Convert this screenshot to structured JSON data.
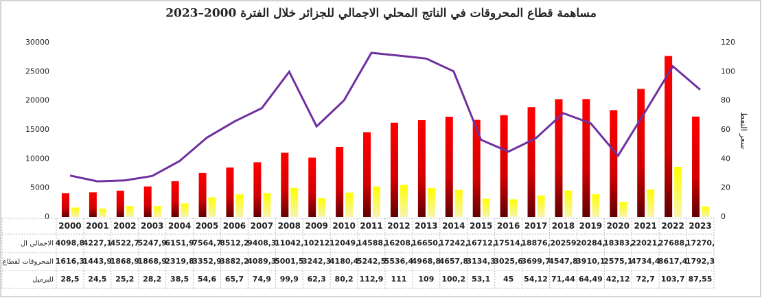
{
  "chart_data": {
    "type": "bar_line",
    "title": "مساهمة قطاع المحروقات في الناتج المحلي الاجمالي للجزائر خلال الفترة 2000–2023",
    "y2_label": "سعر النفط",
    "categories": [
      "2000",
      "2001",
      "2002",
      "2003",
      "2004",
      "2005",
      "2006",
      "2007",
      "2008",
      "2009",
      "2010",
      "2011",
      "2012",
      "2013",
      "2014",
      "2015",
      "2016",
      "2017",
      "2018",
      "2019",
      "2020",
      "2021",
      "2022",
      "2023"
    ],
    "ylim": [
      0,
      30000
    ],
    "yticks": [
      0,
      5000,
      10000,
      15000,
      20000,
      25000,
      30000
    ],
    "y2lim": [
      0,
      120
    ],
    "y2ticks": [
      0,
      20,
      40,
      60,
      80,
      100,
      120
    ],
    "grid": false,
    "series": [
      {
        "name": "الاجمالي ال",
        "color": "#e00000",
        "kind": "bar",
        "values": [
          4098.8,
          4227.1,
          4522.7,
          5247.9,
          6151.9,
          7564.7,
          8512.2,
          9408.3,
          11042,
          10212,
          12049,
          14588,
          16208,
          16650,
          17242,
          16712,
          17514,
          18876,
          20259,
          20284,
          18383,
          22021,
          27688,
          17270
        ],
        "value_labels": [
          "4098,8",
          "4227,1",
          "4522,7",
          "5247,9",
          "6151,9",
          "7564,7",
          "8512,2",
          "9408,3",
          "11042,",
          "10212",
          "12049,",
          "14588,",
          "16208,",
          "16650,",
          "17242,",
          "16712,",
          "17514,",
          "18876,",
          "20259",
          "20284,",
          "18383,",
          "22021,",
          "27688,",
          "17270,"
        ]
      },
      {
        "name": "المحروقات لقطاع ال",
        "color": "#f5f000",
        "kind": "bar",
        "values": [
          1616.3,
          1443.9,
          1868.9,
          1868.9,
          2319.8,
          3352.9,
          3882.2,
          4089.3,
          5001.5,
          3242.3,
          4180.4,
          5242.5,
          5536.4,
          4968.8,
          4657.8,
          3134.3,
          3025.6,
          3699.7,
          4547.8,
          3910.1,
          2575.1,
          4734.4,
          8617.4,
          1792.3
        ],
        "value_labels": [
          "1616,3",
          "1443,9",
          "1868,9",
          "1868,9",
          "2319,8",
          "3352,9",
          "3882,2",
          "4089,3",
          "5001,5",
          "3242,3",
          "4180,4",
          "5242,5",
          "5536,4",
          "4968,8",
          "4657,8",
          "3134,3",
          "3025,6",
          "3699,7",
          "4547,8",
          "3910,1",
          "2575,1",
          "4734,4",
          "8617,4",
          "1792,3"
        ]
      },
      {
        "name": "للبرميل",
        "color": "#7030a0",
        "kind": "line",
        "axis": "y2",
        "values": [
          28.5,
          24.5,
          25.2,
          28.2,
          38.5,
          54.6,
          65.7,
          74.9,
          99.9,
          62.3,
          80.2,
          112.9,
          111,
          109,
          100.2,
          53.1,
          45,
          54.12,
          71.44,
          64.49,
          42.12,
          72.7,
          103.7,
          87.55
        ],
        "value_labels": [
          "28,5",
          "24,5",
          "25,2",
          "28,2",
          "38,5",
          "54,6",
          "65,7",
          "74,9",
          "99,9",
          "62,3",
          "80,2",
          "112,9",
          "111",
          "109",
          "100,2",
          "53,1",
          "45",
          "54,12",
          "71,44",
          "64,49",
          "42,12",
          "72,7",
          "103,7",
          "87,55"
        ]
      }
    ]
  }
}
